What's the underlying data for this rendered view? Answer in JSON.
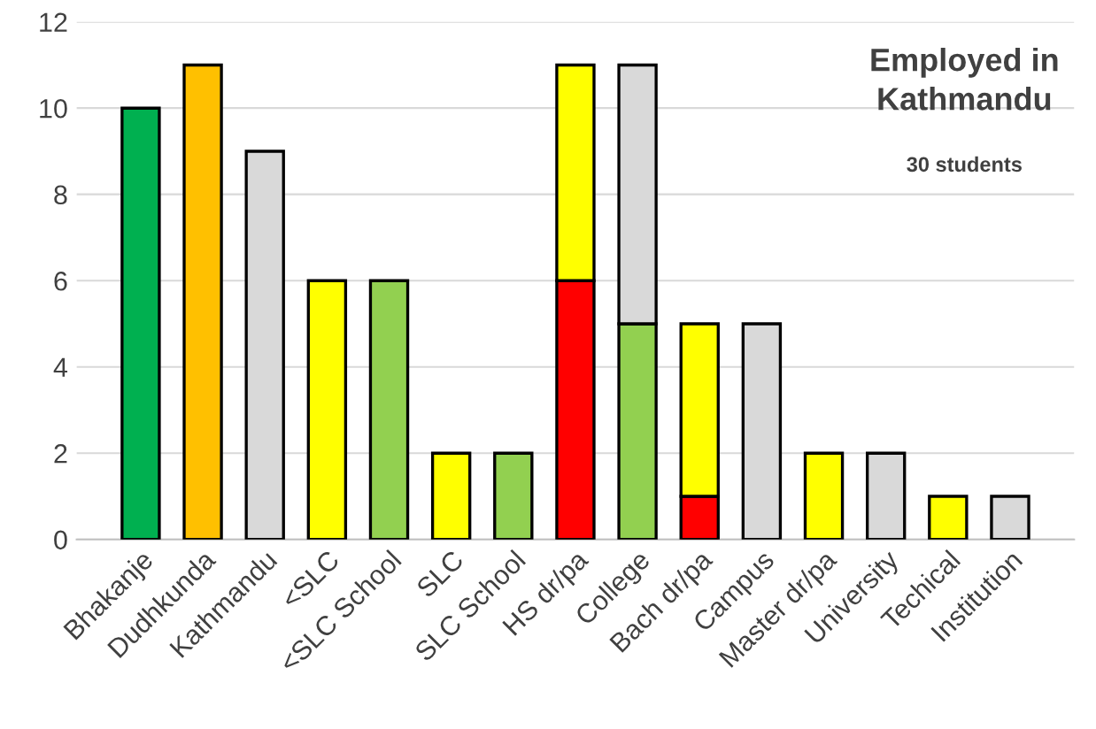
{
  "chart_data": {
    "type": "bar",
    "title": "Employed in\nKathmandu",
    "subtitle": "30 students",
    "stacked": true,
    "categories": [
      "Bhakanje",
      "Dudhkunda",
      "Kathmandu",
      "<SLC",
      "<SLC School",
      "SLC",
      "SLC School",
      "HS dr/pa",
      "College",
      "Bach dr/pa",
      "Campus",
      "Master dr/pa",
      "University",
      "Techical",
      "Institution"
    ],
    "series": [
      {
        "colors": [
          "#00b050",
          "#ffc000",
          "#d9d9d9",
          "#ffff00",
          "#92d050",
          "#ffff00",
          "#92d050",
          "#ff0000",
          "#92d050",
          "#ff0000",
          "#d9d9d9",
          "#ffff00",
          "#d9d9d9",
          "#ffff00",
          "#d9d9d9"
        ],
        "values": [
          10,
          11,
          9,
          6,
          6,
          2,
          2,
          6,
          5,
          1,
          5,
          2,
          2,
          1,
          1
        ]
      },
      {
        "colors": [
          null,
          null,
          null,
          null,
          null,
          null,
          null,
          "#ffff00",
          "#d9d9d9",
          "#ffff00",
          null,
          null,
          null,
          null,
          null
        ],
        "values": [
          null,
          null,
          null,
          null,
          null,
          null,
          null,
          5,
          6,
          4,
          null,
          null,
          null,
          null,
          null
        ]
      }
    ],
    "ylim": [
      0,
      12
    ],
    "yticks": [
      0,
      2,
      4,
      6,
      8,
      10,
      12
    ],
    "grid": "y"
  }
}
